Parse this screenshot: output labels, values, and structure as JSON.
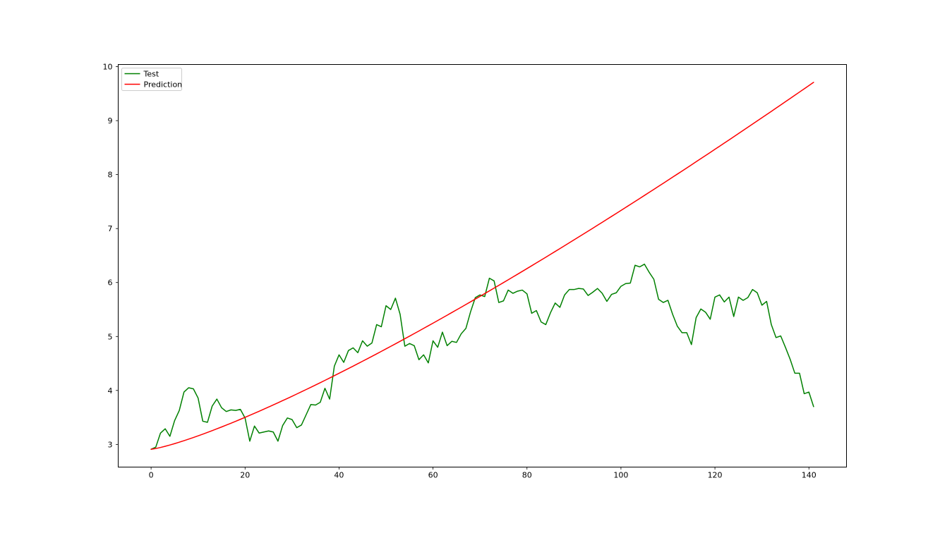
{
  "chart_data": {
    "type": "line",
    "title": "",
    "xlabel": "",
    "ylabel": "",
    "xlim": [
      -7,
      148
    ],
    "ylim": [
      2.58,
      10.04
    ],
    "x_ticks": [
      0,
      20,
      40,
      60,
      80,
      100,
      120,
      140
    ],
    "y_ticks": [
      3,
      4,
      5,
      6,
      7,
      8,
      9,
      10
    ],
    "grid": false,
    "legend_position": "top-left",
    "series": [
      {
        "name": "Test",
        "color": "#008000",
        "x_start": 0,
        "values": [
          2.91,
          2.95,
          3.21,
          3.29,
          3.15,
          3.44,
          3.63,
          3.97,
          4.05,
          4.03,
          3.86,
          3.43,
          3.41,
          3.71,
          3.84,
          3.68,
          3.61,
          3.64,
          3.63,
          3.65,
          3.49,
          3.06,
          3.34,
          3.21,
          3.23,
          3.25,
          3.23,
          3.06,
          3.35,
          3.49,
          3.46,
          3.31,
          3.36,
          3.55,
          3.74,
          3.73,
          3.78,
          4.04,
          3.84,
          4.45,
          4.66,
          4.52,
          4.74,
          4.79,
          4.7,
          4.92,
          4.82,
          4.88,
          5.22,
          5.18,
          5.57,
          5.5,
          5.71,
          5.41,
          4.82,
          4.87,
          4.83,
          4.57,
          4.66,
          4.51,
          4.92,
          4.8,
          5.08,
          4.83,
          4.91,
          4.89,
          5.05,
          5.15,
          5.46,
          5.72,
          5.77,
          5.74,
          6.08,
          6.03,
          5.63,
          5.66,
          5.86,
          5.8,
          5.84,
          5.86,
          5.79,
          5.43,
          5.48,
          5.27,
          5.22,
          5.44,
          5.62,
          5.54,
          5.77,
          5.87,
          5.87,
          5.89,
          5.88,
          5.76,
          5.82,
          5.89,
          5.8,
          5.65,
          5.78,
          5.81,
          5.93,
          5.98,
          5.99,
          6.32,
          6.29,
          6.34,
          6.19,
          6.06,
          5.69,
          5.63,
          5.67,
          5.41,
          5.19,
          5.07,
          5.07,
          4.85,
          5.35,
          5.51,
          5.45,
          5.32,
          5.73,
          5.77,
          5.64,
          5.73,
          5.37,
          5.73,
          5.67,
          5.72,
          5.87,
          5.81,
          5.58,
          5.65,
          5.22,
          4.98,
          5.01,
          4.8,
          4.58,
          4.32,
          4.32,
          3.94,
          3.97,
          3.7
        ]
      },
      {
        "name": "Prediction",
        "color": "#ff0000",
        "x_start": 0,
        "curve": {
          "start": 2.91,
          "end": 9.71,
          "exponent": 1.25,
          "points": 142
        }
      }
    ]
  }
}
